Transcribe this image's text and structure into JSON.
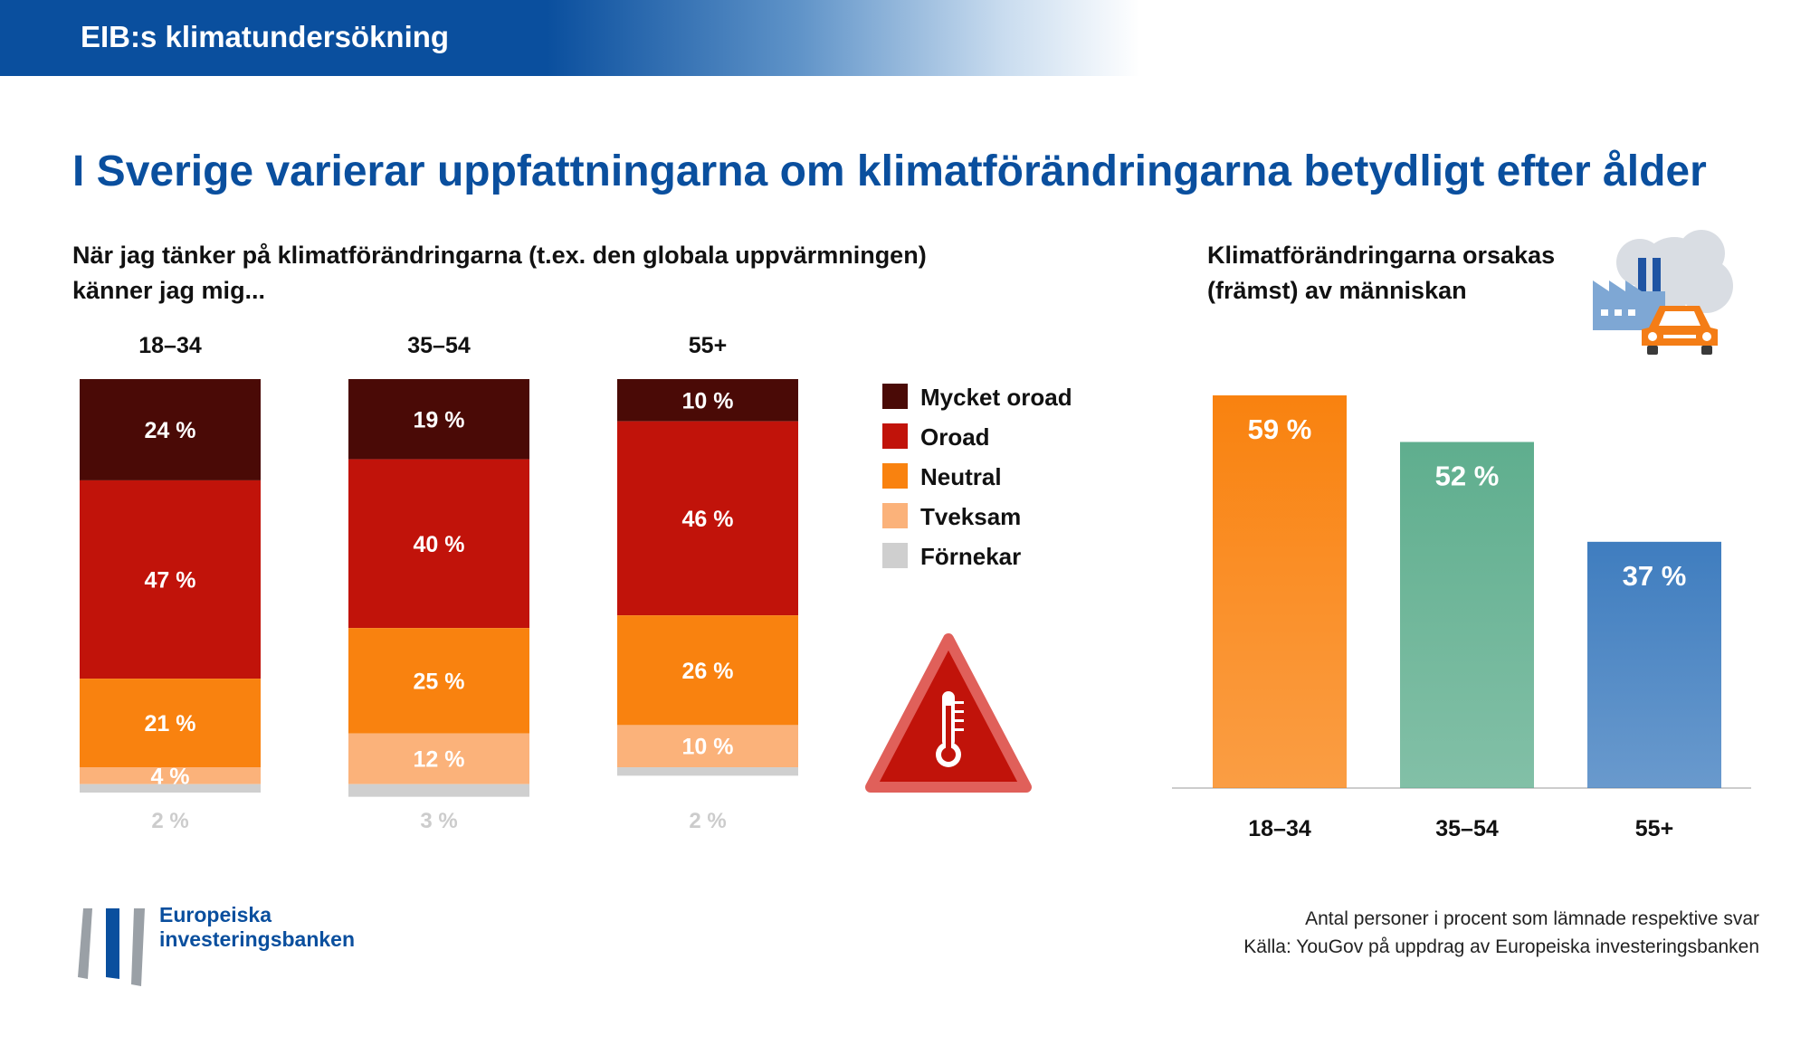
{
  "header": {
    "banner_title": "EIB:s klimatundersökning",
    "headline": "I Sverige varierar uppfattningarna om klimatförändringarna betydligt efter ålder"
  },
  "colors": {
    "brand_blue": "#0a4f9e",
    "mycket_oroad": "#4a0a06",
    "oroad": "#c1130a",
    "neutral": "#f9820f",
    "tveksam": "#fbb27a",
    "fornekar": "#cfcfcf",
    "bar_18_34": "#f9820f",
    "bar_35_54": "#5fae8e",
    "bar_55": "#3f7dbf"
  },
  "icons": {
    "warning": "thermometer-warning-icon",
    "pollution": "factory-car-icon",
    "logo": "eib-logo-icon"
  },
  "chart_data": [
    {
      "type": "bar",
      "stacked": true,
      "subtitle": "När jag tänker på klimatförändringarna (t.ex. den globala uppvärmningen) känner jag mig...",
      "subtitle_lines": [
        "När jag tänker på klimatförändringarna (t.ex. den globala uppvärmningen)",
        "känner jag mig..."
      ],
      "categories": [
        "18–34",
        "35–54",
        "55+"
      ],
      "series": [
        {
          "name": "Mycket oroad",
          "color": "#4a0a06",
          "values": [
            24,
            19,
            10
          ],
          "labels": [
            "24 %",
            "19 %",
            "10 %"
          ]
        },
        {
          "name": "Oroad",
          "color": "#c1130a",
          "values": [
            47,
            40,
            46
          ],
          "labels": [
            "47 %",
            "40 %",
            "46 %"
          ]
        },
        {
          "name": "Neutral",
          "color": "#f9820f",
          "values": [
            21,
            25,
            26
          ],
          "labels": [
            "21 %",
            "25 %",
            "26 %"
          ]
        },
        {
          "name": "Tveksam",
          "color": "#fbb27a",
          "values": [
            4,
            12,
            10
          ],
          "labels": [
            "4 %",
            "12 %",
            "10 %"
          ]
        },
        {
          "name": "Förnekar",
          "color": "#cfcfcf",
          "values": [
            2,
            3,
            2
          ],
          "labels": [
            "2 %",
            "3 %",
            "2 %"
          ]
        }
      ],
      "legend_position": "right",
      "ylim": [
        0,
        100
      ]
    },
    {
      "type": "bar",
      "subtitle": "Klimatförändringarna orsakas (främst) av människan",
      "subtitle_lines": [
        "Klimatförändringarna orsakas",
        "(främst) av människan"
      ],
      "categories": [
        "18–34",
        "35–54",
        "55+"
      ],
      "values": [
        59,
        52,
        37
      ],
      "labels": [
        "59 %",
        "52 %",
        "37 %"
      ],
      "colors": [
        "#f9820f",
        "#5fae8e",
        "#3f7dbf"
      ],
      "ylim": [
        0,
        60
      ]
    }
  ],
  "footer": {
    "note": "Antal personer i procent som lämnade respektive svar",
    "source": "Källa: YouGov på uppdrag av Europeiska investeringsbanken",
    "logo_line1": "Europeiska",
    "logo_line2": "investeringsbanken"
  }
}
